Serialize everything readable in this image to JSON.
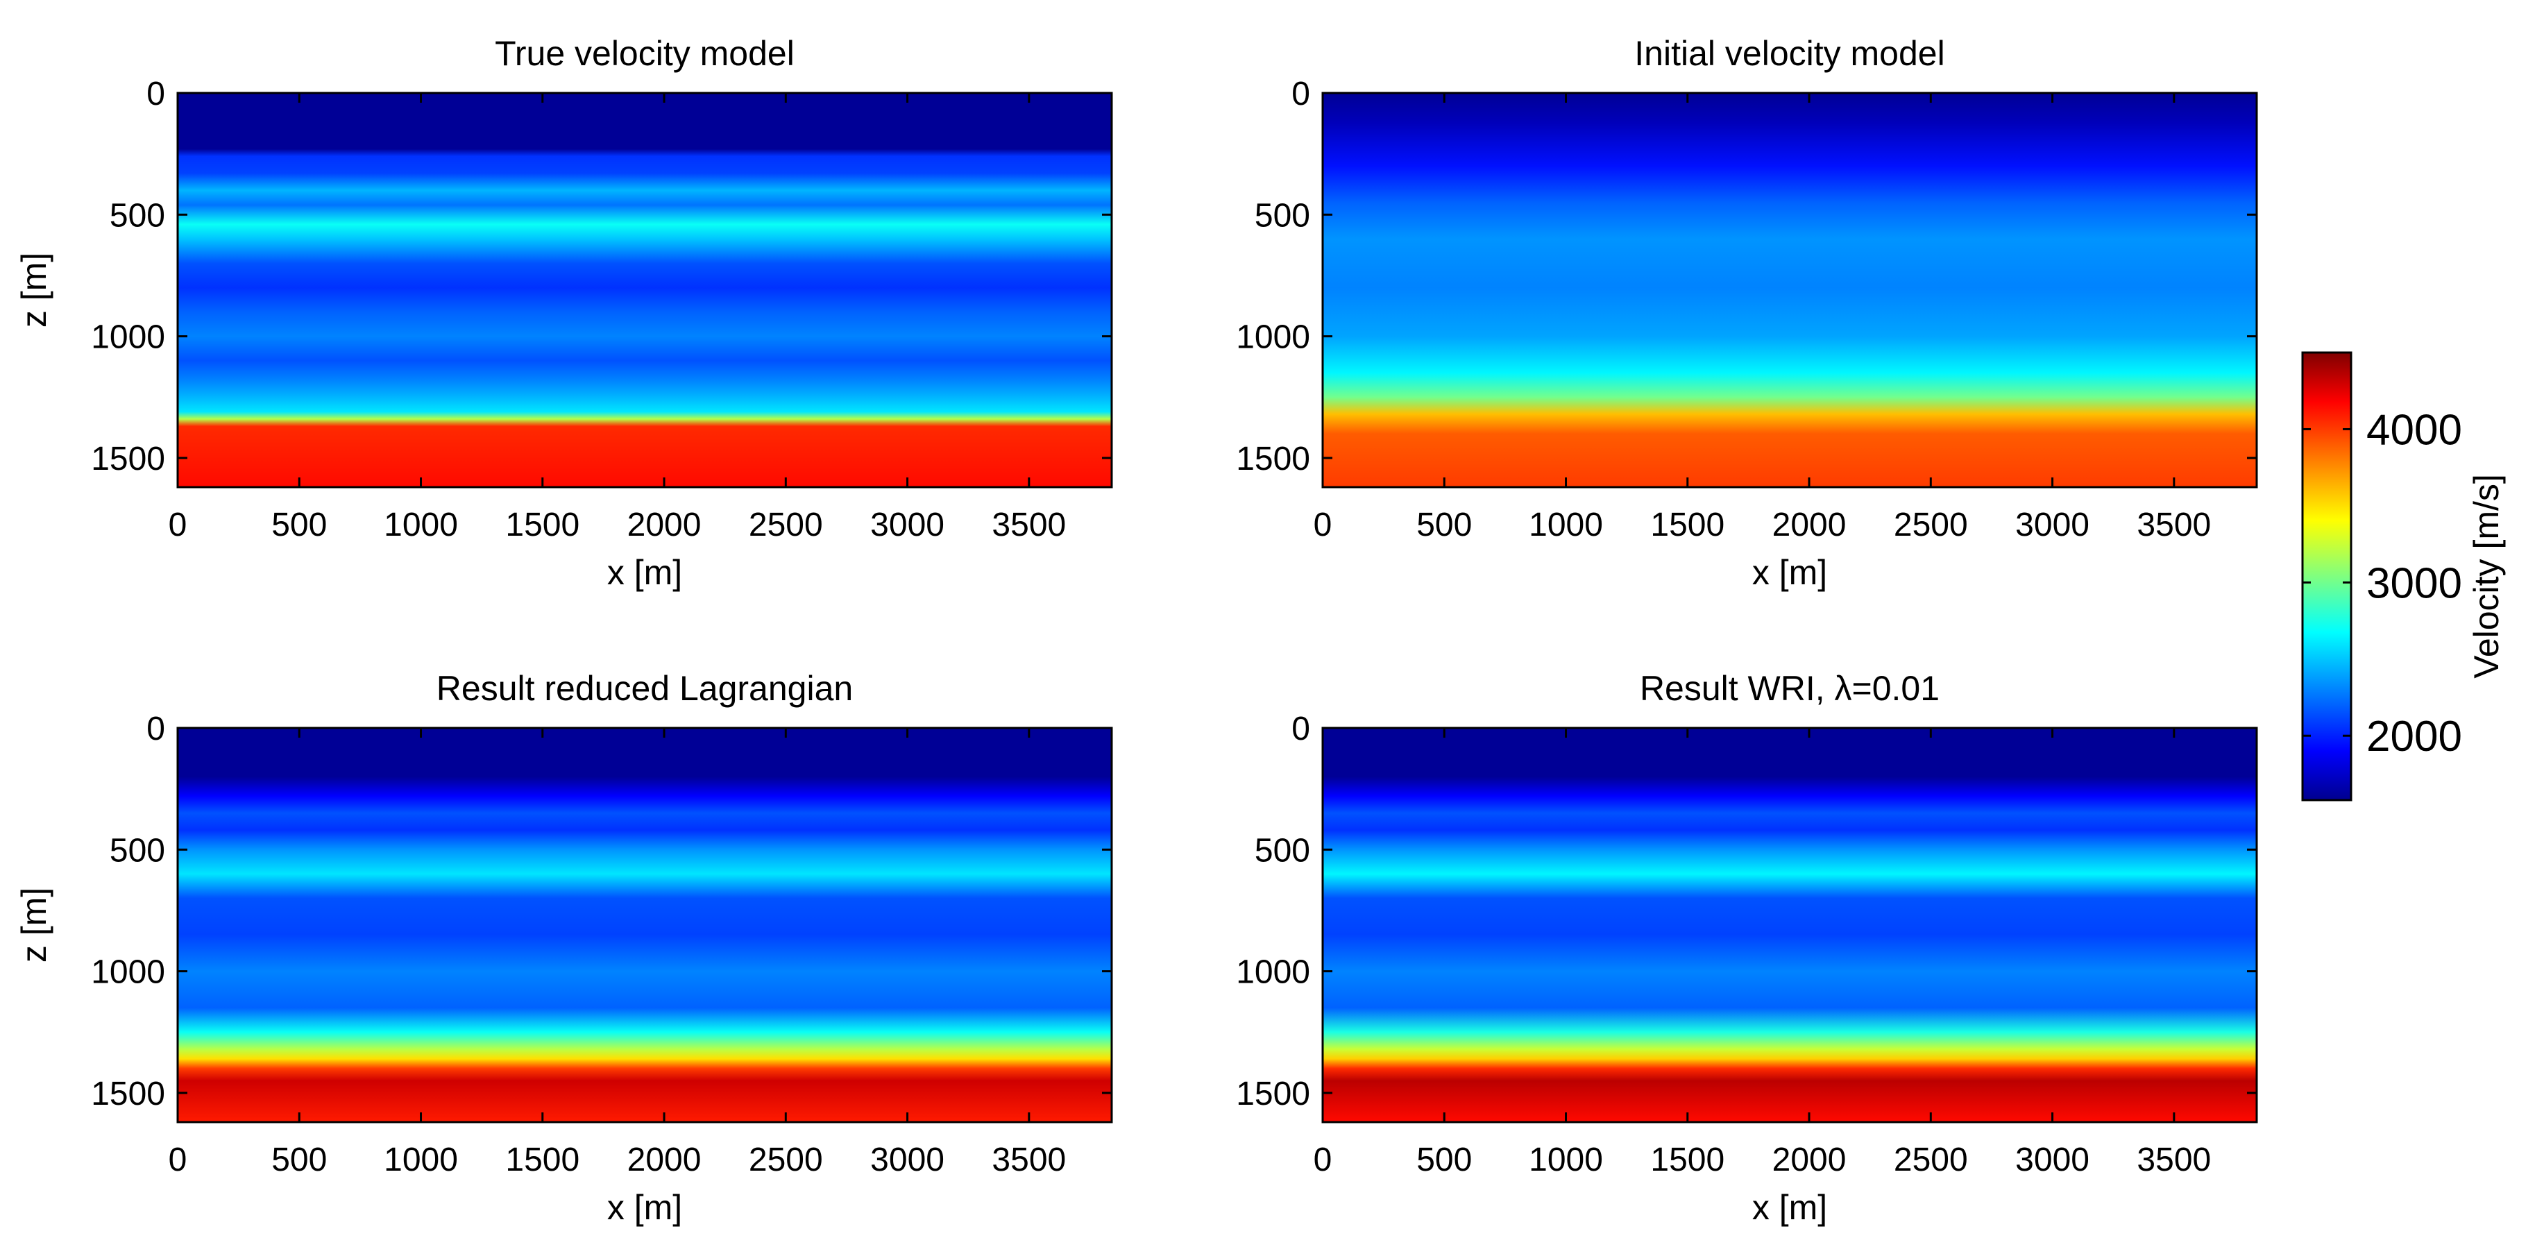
{
  "chart_data": [
    {
      "type": "heatmap",
      "title": "True velocity model",
      "xlabel": "x [m]",
      "ylabel": "z [m]",
      "xlim": [
        0,
        3840
      ],
      "ylim": [
        0,
        1620
      ],
      "xticks": [
        0,
        500,
        1000,
        1500,
        2000,
        2500,
        3000,
        3500
      ],
      "yticks": [
        0,
        500,
        1000,
        1500
      ],
      "xtick_labels": [
        "0",
        "500",
        "1000",
        "1500",
        "2000",
        "2500",
        "3000",
        "3500"
      ],
      "ytick_labels": [
        "0",
        "500",
        "1000",
        "1500"
      ],
      "velocity_profile": [
        [
          0,
          1600
        ],
        [
          230,
          1600
        ],
        [
          260,
          2050
        ],
        [
          330,
          2100
        ],
        [
          400,
          2450
        ],
        [
          460,
          2250
        ],
        [
          540,
          2700
        ],
        [
          600,
          2500
        ],
        [
          700,
          2150
        ],
        [
          800,
          2050
        ],
        [
          900,
          2200
        ],
        [
          1000,
          2300
        ],
        [
          1100,
          2150
        ],
        [
          1180,
          2300
        ],
        [
          1250,
          2450
        ],
        [
          1310,
          2600
        ],
        [
          1340,
          3200
        ],
        [
          1370,
          4050
        ],
        [
          1620,
          4150
        ]
      ]
    },
    {
      "type": "heatmap",
      "title": "Initial velocity model",
      "xlabel": "x [m]",
      "ylabel": "",
      "xlim": [
        0,
        3840
      ],
      "ylim": [
        0,
        1620
      ],
      "xticks": [
        0,
        500,
        1000,
        1500,
        2000,
        2500,
        3000,
        3500
      ],
      "yticks": [
        0,
        500,
        1000,
        1500
      ],
      "xtick_labels": [
        "0",
        "500",
        "1000",
        "1500",
        "2000",
        "2500",
        "3000",
        "3500"
      ],
      "ytick_labels": [
        "0",
        "500",
        "1000",
        "1500"
      ],
      "velocity_profile": [
        [
          0,
          1600
        ],
        [
          120,
          1700
        ],
        [
          300,
          1950
        ],
        [
          450,
          2200
        ],
        [
          600,
          2350
        ],
        [
          800,
          2300
        ],
        [
          1000,
          2400
        ],
        [
          1150,
          2650
        ],
        [
          1250,
          3000
        ],
        [
          1320,
          3600
        ],
        [
          1400,
          3900
        ],
        [
          1620,
          4000
        ]
      ]
    },
    {
      "type": "heatmap",
      "title": "Result reduced Lagrangian",
      "xlabel": "x [m]",
      "ylabel": "z [m]",
      "xlim": [
        0,
        3840
      ],
      "ylim": [
        0,
        1620
      ],
      "xticks": [
        0,
        500,
        1000,
        1500,
        2000,
        2500,
        3000,
        3500
      ],
      "yticks": [
        0,
        500,
        1000,
        1500
      ],
      "xtick_labels": [
        "0",
        "500",
        "1000",
        "1500",
        "2000",
        "2500",
        "3000",
        "3500"
      ],
      "ytick_labels": [
        "0",
        "500",
        "1000",
        "1500"
      ],
      "velocity_profile": [
        [
          0,
          1600
        ],
        [
          200,
          1600
        ],
        [
          280,
          1900
        ],
        [
          350,
          2150
        ],
        [
          420,
          2050
        ],
        [
          500,
          2350
        ],
        [
          600,
          2600
        ],
        [
          700,
          2150
        ],
        [
          850,
          2100
        ],
        [
          1000,
          2300
        ],
        [
          1150,
          2200
        ],
        [
          1250,
          2700
        ],
        [
          1320,
          3200
        ],
        [
          1360,
          3500
        ],
        [
          1400,
          4000
        ],
        [
          1450,
          4300
        ],
        [
          1620,
          4100
        ]
      ]
    },
    {
      "type": "heatmap",
      "title": "Result WRI, λ=0.01",
      "xlabel": "x [m]",
      "ylabel": "",
      "xlim": [
        0,
        3840
      ],
      "ylim": [
        0,
        1620
      ],
      "xticks": [
        0,
        500,
        1000,
        1500,
        2000,
        2500,
        3000,
        3500
      ],
      "yticks": [
        0,
        500,
        1000,
        1500
      ],
      "xtick_labels": [
        "0",
        "500",
        "1000",
        "1500",
        "2000",
        "2500",
        "3000",
        "3500"
      ],
      "ytick_labels": [
        "0",
        "500",
        "1000",
        "1500"
      ],
      "velocity_profile": [
        [
          0,
          1600
        ],
        [
          200,
          1600
        ],
        [
          280,
          1900
        ],
        [
          350,
          2150
        ],
        [
          420,
          2050
        ],
        [
          500,
          2350
        ],
        [
          600,
          2650
        ],
        [
          700,
          2150
        ],
        [
          850,
          2100
        ],
        [
          1000,
          2300
        ],
        [
          1150,
          2200
        ],
        [
          1250,
          2750
        ],
        [
          1320,
          3250
        ],
        [
          1360,
          3550
        ],
        [
          1400,
          4050
        ],
        [
          1450,
          4350
        ],
        [
          1620,
          4150
        ]
      ]
    }
  ],
  "colorbar": {
    "label": "Velocity [m/s]",
    "range": [
      1580,
      4500
    ],
    "ticks": [
      2000,
      3000,
      4000
    ],
    "tick_labels": [
      "2000",
      "3000",
      "4000"
    ],
    "colormap": "jet"
  },
  "colors": {
    "jet_stops": [
      "#00008f",
      "#0000ff",
      "#00ffff",
      "#ffff00",
      "#ff0000",
      "#800000"
    ]
  }
}
